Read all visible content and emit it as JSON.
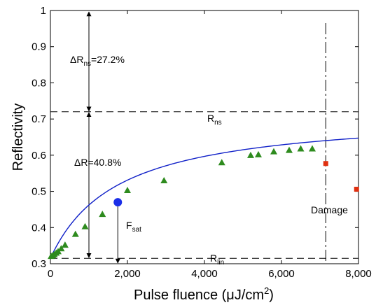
{
  "chart_data": {
    "type": "scatter",
    "xlabel": "Pulse fluence (μJ/cm²)",
    "ylabel": "Reflectivity",
    "xlim": [
      0,
      8000
    ],
    "ylim": [
      0.3,
      1.0
    ],
    "x_ticks": [
      0,
      2000,
      4000,
      6000,
      8000
    ],
    "x_tick_labels": [
      "0",
      "2,000",
      "4,000",
      "6,000",
      "8,000"
    ],
    "y_ticks": [
      0.3,
      0.4,
      0.5,
      0.6,
      0.7,
      0.8,
      0.9,
      1.0
    ],
    "y_tick_labels": [
      "0.3",
      "0.4",
      "0.5",
      "0.6",
      "0.7",
      "0.8",
      "0.9",
      "1"
    ],
    "grid": false,
    "colors": {
      "measured": "#2e8b1e",
      "fit": "#1020c8",
      "saturation": "#1a2ee8",
      "damage": "#e03010",
      "reference": "#000000"
    },
    "measured_points": [
      {
        "x": 20,
        "y": 0.321
      },
      {
        "x": 60,
        "y": 0.323
      },
      {
        "x": 100,
        "y": 0.326
      },
      {
        "x": 150,
        "y": 0.33
      },
      {
        "x": 200,
        "y": 0.334
      },
      {
        "x": 280,
        "y": 0.342
      },
      {
        "x": 380,
        "y": 0.352
      },
      {
        "x": 650,
        "y": 0.382
      },
      {
        "x": 900,
        "y": 0.403
      },
      {
        "x": 1350,
        "y": 0.437
      },
      {
        "x": 2000,
        "y": 0.503
      },
      {
        "x": 2950,
        "y": 0.53
      },
      {
        "x": 4450,
        "y": 0.58
      },
      {
        "x": 5200,
        "y": 0.6
      },
      {
        "x": 5400,
        "y": 0.602
      },
      {
        "x": 5800,
        "y": 0.61
      },
      {
        "x": 6200,
        "y": 0.614
      },
      {
        "x": 6500,
        "y": 0.618
      },
      {
        "x": 6800,
        "y": 0.618
      }
    ],
    "damage_points": [
      {
        "x": 7150,
        "y": 0.577
      },
      {
        "x": 7950,
        "y": 0.506
      }
    ],
    "saturation_point": {
      "x": 1750,
      "y": 0.47
    },
    "fit_model": {
      "R_lin": 0.315,
      "R_ns": 0.72,
      "F_sat": 1750
    },
    "R_lin": 0.315,
    "R_ns": 0.72,
    "damage_threshold_x": 7150
  },
  "annotations": {
    "delta_r_ns": {
      "prefix": "ΔR",
      "sub": "ns",
      "suffix": "=27.2%"
    },
    "delta_r": {
      "text": "ΔR=40.8%"
    },
    "r_ns": {
      "main": "R",
      "sub": "ns"
    },
    "r_lin": {
      "main": "R",
      "sub": "lin"
    },
    "f_sat": {
      "main": "F",
      "sub": "sat"
    },
    "damage": {
      "text": "Damage"
    }
  },
  "axis_titles": {
    "xlabel_main": "Pulse fluence (μJ/cm",
    "xlabel_sup": "2",
    "xlabel_end": ")",
    "ylabel": "Reflectivity"
  }
}
